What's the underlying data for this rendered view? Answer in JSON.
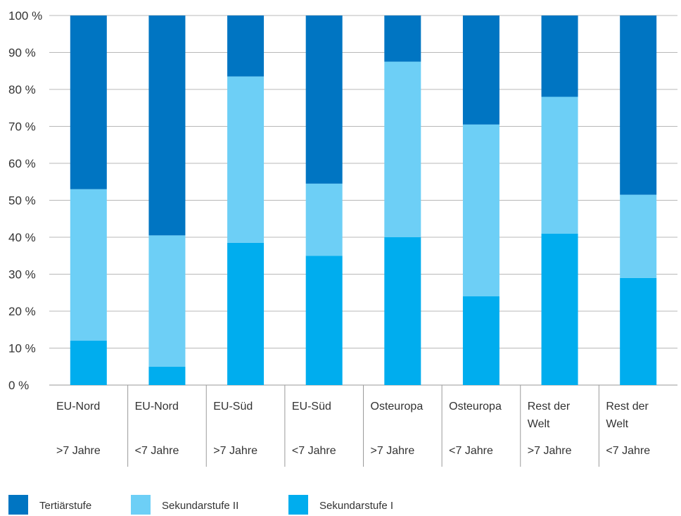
{
  "chart_data": {
    "type": "bar",
    "stacked": true,
    "percent_stacked": true,
    "categories": [
      {
        "region": [
          "EU-Nord"
        ],
        "group": ">7 Jahre"
      },
      {
        "region": [
          "EU-Nord"
        ],
        "group": "<7 Jahre"
      },
      {
        "region": [
          "EU-Süd"
        ],
        "group": ">7 Jahre"
      },
      {
        "region": [
          "EU-Süd"
        ],
        "group": "<7 Jahre"
      },
      {
        "region": [
          "Osteuropa"
        ],
        "group": ">7 Jahre"
      },
      {
        "region": [
          "Osteuropa"
        ],
        "group": "<7 Jahre"
      },
      {
        "region": [
          "Rest der",
          "Welt"
        ],
        "group": ">7 Jahre"
      },
      {
        "region": [
          "Rest der",
          "Welt"
        ],
        "group": "<7 Jahre"
      }
    ],
    "series": [
      {
        "name": "Sekundarstufe I",
        "color": "#00adee",
        "values": [
          12,
          5,
          38.5,
          35,
          40,
          24,
          41,
          29
        ]
      },
      {
        "name": "Sekundarstufe II",
        "color": "#6dcff6",
        "values": [
          41,
          35.5,
          45,
          19.5,
          47.5,
          46.5,
          37,
          22.5
        ]
      },
      {
        "name": "Tertiärstufe",
        "color": "#0075c2",
        "values": [
          47,
          59.5,
          16.5,
          45.5,
          12.5,
          29.5,
          22,
          48.5
        ]
      }
    ],
    "legend_order": [
      2,
      1,
      0
    ],
    "ylim": [
      0,
      100
    ],
    "yticks": [
      "0 %",
      "10 %",
      "20 %",
      "30 %",
      "40 %",
      "50 %",
      "60 %",
      "70 %",
      "80 %",
      "90 %",
      "100 %"
    ],
    "ytick_values": [
      0,
      10,
      20,
      30,
      40,
      50,
      60,
      70,
      80,
      90,
      100
    ],
    "grid": true,
    "legend_position": "bottom-left"
  }
}
